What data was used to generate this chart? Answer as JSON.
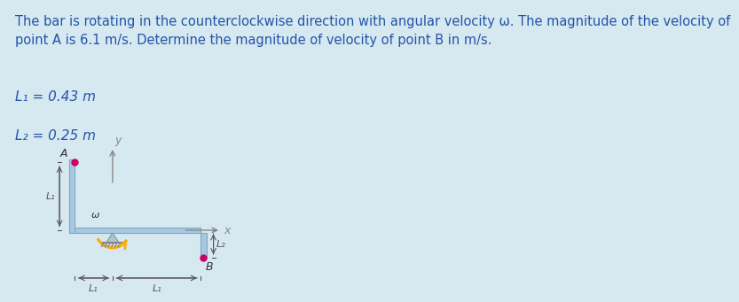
{
  "bg_color": "#d6e8f0",
  "diagram_bg": "#ffffff",
  "title_text": "The bar is rotating in the counterclockwise direction with angular velocity ω. The magnitude of the velocity of\npoint A is 6.1 m/s. Determine the magnitude of velocity of point B in m/s.",
  "L1_label": "L₁ = 0.43 m",
  "L2_label": "L₂ = 0.25 m",
  "bar_color": "#a8c8e0",
  "bar_color_dark": "#7aaac0",
  "title_color": "#2255aa",
  "label_color": "#2255aa",
  "arrow_color": "#ffaa00",
  "dim_line_color": "#555555",
  "point_color": "#cc0066",
  "axis_color": "#888888",
  "title_fontsize": 10.5,
  "label_fontsize": 11
}
